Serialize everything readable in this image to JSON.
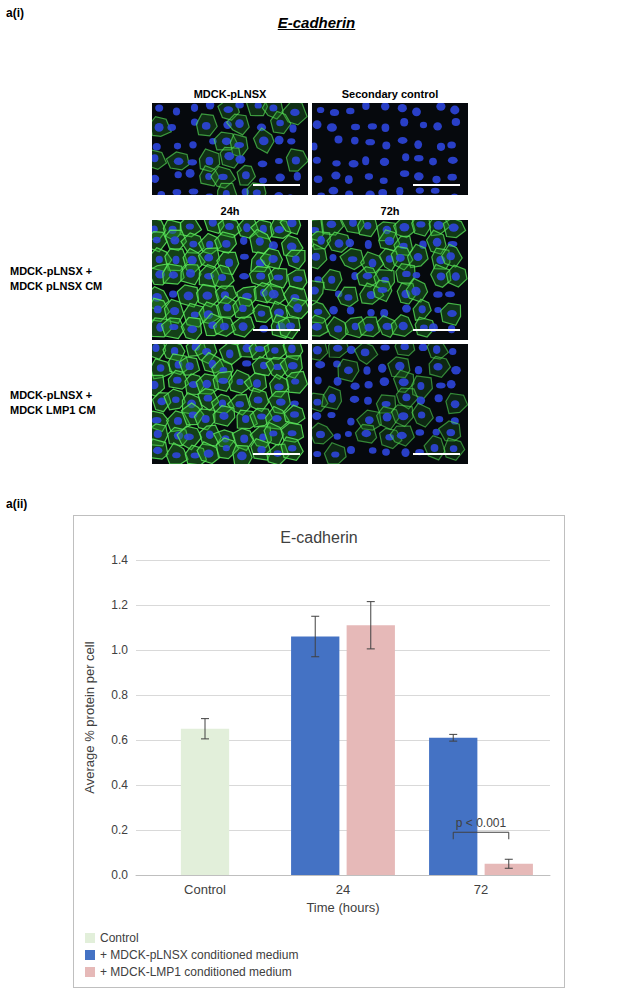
{
  "figure": {
    "panel_a_i": {
      "label": "a(i)",
      "title": "E-cadherin",
      "top_columns": [
        "MDCK-pLNSX",
        "Secondary control"
      ],
      "time_columns": [
        "24h",
        "72h"
      ],
      "row_labels": [
        [
          "MDCK-pLNSX +",
          "MDCK pLNSX CM"
        ],
        [
          "MDCK-pLNSX +",
          "MDCK LMP1 CM"
        ]
      ]
    },
    "panel_a_ii": {
      "label": "a(ii)"
    }
  },
  "chart_data": {
    "type": "bar",
    "title": "E-cadherin",
    "x_label": "Time (hours)",
    "y_label": "Average % protein per cell",
    "categories": [
      "Control",
      "24",
      "72"
    ],
    "series": [
      {
        "name": "Control",
        "color": "#e2efda",
        "values": [
          0.65,
          null,
          null
        ],
        "errors": [
          0.045,
          null,
          null
        ]
      },
      {
        "name": "+ MDCK-pLNSX conditioned medium",
        "color": "#4472c4",
        "values": [
          null,
          1.06,
          0.61
        ],
        "errors": [
          null,
          0.09,
          0.015
        ]
      },
      {
        "name": "+ MDCK-LMP1 conditioned medium",
        "color": "#e6b9b8",
        "values": [
          null,
          1.11,
          0.05
        ],
        "errors": [
          null,
          0.105,
          0.02
        ]
      }
    ],
    "ylim": [
      0,
      1.4
    ],
    "yticks": [
      {
        "value": 0,
        "label": "0.0"
      },
      {
        "value": 0.2,
        "label": "0.2"
      },
      {
        "value": 0.4,
        "label": "0.4"
      },
      {
        "value": 0.6,
        "label": "0.6"
      },
      {
        "value": 0.8,
        "label": "0.8"
      },
      {
        "value": 1,
        "label": "1.0"
      },
      {
        "value": 1.2,
        "label": "1.2"
      },
      {
        "value": 1.4,
        "label": "1.4"
      }
    ],
    "grid": true,
    "legend": "bottom-left",
    "annotations": [
      {
        "text": "p < 0.001",
        "category": "72",
        "y": 0.19,
        "between": [
          "+ MDCK-pLNSX conditioned medium",
          "+ MDCK-LMP1 conditioned medium"
        ]
      }
    ]
  }
}
